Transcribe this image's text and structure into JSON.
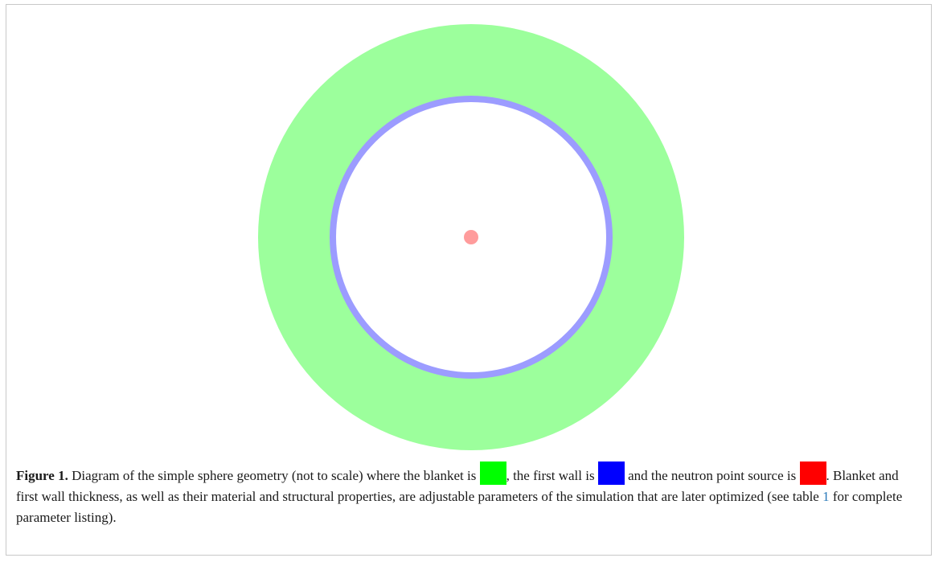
{
  "figure": {
    "colors": {
      "blanket_fill": "#9cff9c",
      "first_wall_fill": "#9c9cff",
      "source_fill": "#ff9c9c",
      "blanket_swatch": "#00ff00",
      "first_wall_swatch": "#0000ff",
      "source_swatch": "#ff0000",
      "ref_link": "#2a7ab9"
    }
  },
  "caption": {
    "label": "Figure 1.",
    "part1": " Diagram of the simple sphere geometry (not to scale) where the blanket is ",
    "part2": ", the first wall is ",
    "part3": " and the neutron point source is ",
    "part4": ". Blanket and first wall thickness, as well as their material and structural properties, are adjustable parameters of the simulation that are later optimized (see table ",
    "table_ref": "1",
    "part5": " for complete parameter listing)."
  }
}
